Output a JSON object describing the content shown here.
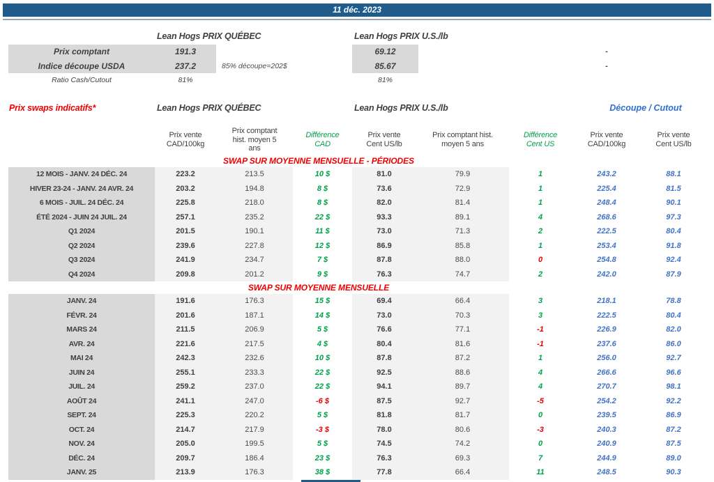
{
  "title_bar": {
    "date": "11 déc. 2023"
  },
  "colors": {
    "header_bar": "#1F5C8C",
    "red_text": "#F00000",
    "green_diff": "#00A24B",
    "red_diff": "#E60000",
    "blue_cutout_values": "#4472C4",
    "blue_cutout_header": "#2E6FD6",
    "label_column_bg": "#D9D9D9",
    "shaded_column_bg": "#F2F2F2"
  },
  "spot": {
    "quebec_header": "Lean Hogs PRIX QUÉBEC",
    "us_header": "Lean Hogs PRIX U.S./lb",
    "rows": [
      {
        "label": "Prix comptant",
        "qc": "191.3",
        "note": "",
        "us": "69.12",
        "right": "-"
      },
      {
        "label": "Indice découpe USDA",
        "qc": "237.2",
        "note": "85% découpe=202$",
        "us": "85.67",
        "right": "-"
      },
      {
        "label": "Ratio Cash/Cutout",
        "qc": "81%",
        "note": "",
        "us": "81%",
        "right": ""
      }
    ]
  },
  "swaps": {
    "title": "Prix swaps indicatifs*",
    "quebec_header": "Lean Hogs PRIX QUÉBEC",
    "us_header": "Lean Hogs PRIX U.S./lb",
    "cutout_header": "Découpe / Cutout",
    "col_headers": {
      "qc_vente": "Prix vente\nCAD/100kg",
      "qc_hist": "Prix comptant\nhist. moyen 5\nans",
      "diff_cad": "Différence\nCAD",
      "us_vente": "Prix vente\nCent US/lb",
      "us_hist": "Prix comptant hist.\nmoyen 5 ans",
      "diff_us": "Différence\nCent US",
      "cut_cad": "Prix vente\nCAD/100kg",
      "cut_us": "Prix vente\nCent US/lb"
    },
    "sections": [
      {
        "title": "SWAP SUR MOYENNE MENSUELLE - PÉRIODES",
        "rows": [
          {
            "label": "12 MOIS - JANV. 24 DÉC. 24",
            "qc_vente": "223.2",
            "qc_hist": "213.5",
            "diff_cad": "10 $",
            "diff_cad_sign": "pos",
            "us_vente": "81.0",
            "us_hist": "79.9",
            "diff_us": "1",
            "diff_us_sign": "pos",
            "cut_cad": "243.2",
            "cut_us": "88.1"
          },
          {
            "label": "HIVER 23-24 -  JANV. 24 AVR. 24",
            "qc_vente": "203.2",
            "qc_hist": "194.8",
            "diff_cad": "8 $",
            "diff_cad_sign": "pos",
            "us_vente": "73.6",
            "us_hist": "72.9",
            "diff_us": "1",
            "diff_us_sign": "pos",
            "cut_cad": "225.4",
            "cut_us": "81.5"
          },
          {
            "label": "6 MOIS -  JUIL. 24 DÉC. 24",
            "qc_vente": "225.8",
            "qc_hist": "218.0",
            "diff_cad": "8 $",
            "diff_cad_sign": "pos",
            "us_vente": "82.0",
            "us_hist": "81.4",
            "diff_us": "1",
            "diff_us_sign": "pos",
            "cut_cad": "248.4",
            "cut_us": "90.1"
          },
          {
            "label": "ÉTÉ 2024 - JUIN 24 JUIL. 24",
            "qc_vente": "257.1",
            "qc_hist": "235.2",
            "diff_cad": "22 $",
            "diff_cad_sign": "pos",
            "us_vente": "93.3",
            "us_hist": "89.1",
            "diff_us": "4",
            "diff_us_sign": "pos",
            "cut_cad": "268.6",
            "cut_us": "97.3"
          },
          {
            "label": "Q1 2024",
            "qc_vente": "201.5",
            "qc_hist": "190.1",
            "diff_cad": "11 $",
            "diff_cad_sign": "pos",
            "us_vente": "73.0",
            "us_hist": "71.3",
            "diff_us": "2",
            "diff_us_sign": "pos",
            "cut_cad": "222.5",
            "cut_us": "80.4"
          },
          {
            "label": "Q2 2024",
            "qc_vente": "239.6",
            "qc_hist": "227.8",
            "diff_cad": "12 $",
            "diff_cad_sign": "pos",
            "us_vente": "86.9",
            "us_hist": "85.8",
            "diff_us": "1",
            "diff_us_sign": "pos",
            "cut_cad": "253.4",
            "cut_us": "91.8"
          },
          {
            "label": "Q3 2024",
            "qc_vente": "241.9",
            "qc_hist": "234.7",
            "diff_cad": "7 $",
            "diff_cad_sign": "pos",
            "us_vente": "87.8",
            "us_hist": "88.0",
            "diff_us": "0",
            "diff_us_sign": "neg",
            "cut_cad": "254.8",
            "cut_us": "92.4"
          },
          {
            "label": "Q4 2024",
            "qc_vente": "209.8",
            "qc_hist": "201.2",
            "diff_cad": "9 $",
            "diff_cad_sign": "pos",
            "us_vente": "76.3",
            "us_hist": "74.7",
            "diff_us": "2",
            "diff_us_sign": "pos",
            "cut_cad": "242.0",
            "cut_us": "87.9"
          }
        ]
      },
      {
        "title": "SWAP SUR MOYENNE MENSUELLE",
        "rows": [
          {
            "label": "JANV. 24",
            "qc_vente": "191.6",
            "qc_hist": "176.3",
            "diff_cad": "15 $",
            "diff_cad_sign": "pos",
            "us_vente": "69.4",
            "us_hist": "66.4",
            "diff_us": "3",
            "diff_us_sign": "pos",
            "cut_cad": "218.1",
            "cut_us": "78.8"
          },
          {
            "label": "FÉVR. 24",
            "qc_vente": "201.6",
            "qc_hist": "187.1",
            "diff_cad": "14 $",
            "diff_cad_sign": "pos",
            "us_vente": "73.0",
            "us_hist": "70.3",
            "diff_us": "3",
            "diff_us_sign": "pos",
            "cut_cad": "222.5",
            "cut_us": "80.4"
          },
          {
            "label": "MARS 24",
            "qc_vente": "211.5",
            "qc_hist": "206.9",
            "diff_cad": "5 $",
            "diff_cad_sign": "pos",
            "us_vente": "76.6",
            "us_hist": "77.1",
            "diff_us": "-1",
            "diff_us_sign": "neg",
            "cut_cad": "226.9",
            "cut_us": "82.0"
          },
          {
            "label": "AVR. 24",
            "qc_vente": "221.6",
            "qc_hist": "217.5",
            "diff_cad": "4 $",
            "diff_cad_sign": "pos",
            "us_vente": "80.4",
            "us_hist": "81.6",
            "diff_us": "-1",
            "diff_us_sign": "neg",
            "cut_cad": "237.6",
            "cut_us": "86.0"
          },
          {
            "label": "MAI 24",
            "qc_vente": "242.3",
            "qc_hist": "232.6",
            "diff_cad": "10 $",
            "diff_cad_sign": "pos",
            "us_vente": "87.8",
            "us_hist": "87.2",
            "diff_us": "1",
            "diff_us_sign": "pos",
            "cut_cad": "256.0",
            "cut_us": "92.7"
          },
          {
            "label": "JUIN 24",
            "qc_vente": "255.1",
            "qc_hist": "233.3",
            "diff_cad": "22 $",
            "diff_cad_sign": "pos",
            "us_vente": "92.5",
            "us_hist": "88.6",
            "diff_us": "4",
            "diff_us_sign": "pos",
            "cut_cad": "266.6",
            "cut_us": "96.6"
          },
          {
            "label": "JUIL. 24",
            "qc_vente": "259.2",
            "qc_hist": "237.0",
            "diff_cad": "22 $",
            "diff_cad_sign": "pos",
            "us_vente": "94.1",
            "us_hist": "89.7",
            "diff_us": "4",
            "diff_us_sign": "pos",
            "cut_cad": "270.7",
            "cut_us": "98.1"
          },
          {
            "label": "AOÛT 24",
            "qc_vente": "241.1",
            "qc_hist": "247.0",
            "diff_cad": "-6 $",
            "diff_cad_sign": "neg",
            "us_vente": "87.5",
            "us_hist": "92.7",
            "diff_us": "-5",
            "diff_us_sign": "neg",
            "cut_cad": "254.2",
            "cut_us": "92.2"
          },
          {
            "label": "SEPT. 24",
            "qc_vente": "225.3",
            "qc_hist": "220.2",
            "diff_cad": "5 $",
            "diff_cad_sign": "pos",
            "us_vente": "81.8",
            "us_hist": "81.7",
            "diff_us": "0",
            "diff_us_sign": "pos",
            "cut_cad": "239.5",
            "cut_us": "86.9"
          },
          {
            "label": "OCT. 24",
            "qc_vente": "214.7",
            "qc_hist": "217.9",
            "diff_cad": "-3 $",
            "diff_cad_sign": "neg",
            "us_vente": "78.0",
            "us_hist": "80.6",
            "diff_us": "-3",
            "diff_us_sign": "neg",
            "cut_cad": "240.3",
            "cut_us": "87.2"
          },
          {
            "label": "NOV. 24",
            "qc_vente": "205.0",
            "qc_hist": "199.5",
            "diff_cad": "5 $",
            "diff_cad_sign": "pos",
            "us_vente": "74.5",
            "us_hist": "74.2",
            "diff_us": "0",
            "diff_us_sign": "pos",
            "cut_cad": "240.9",
            "cut_us": "87.5"
          },
          {
            "label": "DÉC. 24",
            "qc_vente": "209.7",
            "qc_hist": "186.4",
            "diff_cad": "23 $",
            "diff_cad_sign": "pos",
            "us_vente": "76.3",
            "us_hist": "69.3",
            "diff_us": "7",
            "diff_us_sign": "pos",
            "cut_cad": "244.9",
            "cut_us": "89.0"
          },
          {
            "label": "JANV. 25",
            "qc_vente": "213.9",
            "qc_hist": "176.3",
            "diff_cad": "38 $",
            "diff_cad_sign": "pos",
            "us_vente": "77.8",
            "us_hist": "66.4",
            "diff_us": "11",
            "diff_us_sign": "pos",
            "cut_cad": "248.5",
            "cut_us": "90.3"
          }
        ]
      }
    ]
  }
}
